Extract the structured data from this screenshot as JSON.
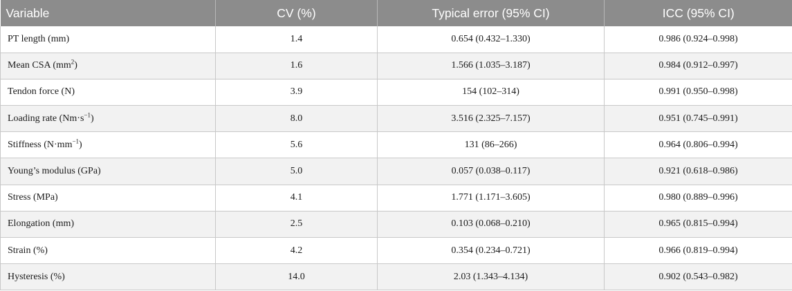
{
  "table": {
    "headers": [
      "Variable",
      "CV (%)",
      "Typical error (95% CI)",
      "ICC (95% CI)"
    ],
    "rows": [
      {
        "variable": "PT length (mm)",
        "sup": "",
        "variable_end": "",
        "cv": "1.4",
        "te": "0.654 (0.432–1.330)",
        "icc": "0.986 (0.924–0.998)"
      },
      {
        "variable": "Mean CSA (mm",
        "sup": "2",
        "variable_end": ")",
        "cv": "1.6",
        "te": "1.566 (1.035–3.187)",
        "icc": "0.984 (0.912–0.997)"
      },
      {
        "variable": "Tendon force (N)",
        "sup": "",
        "variable_end": "",
        "cv": "3.9",
        "te": "154 (102–314)",
        "icc": "0.991 (0.950–0.998)"
      },
      {
        "variable": "Loading rate (Nm·s",
        "sup": "−1",
        "variable_end": ")",
        "cv": "8.0",
        "te": "3.516 (2.325–7.157)",
        "icc": "0.951 (0.745–0.991)"
      },
      {
        "variable": "Stiffness (N·mm",
        "sup": "−1",
        "variable_end": ")",
        "cv": "5.6",
        "te": "131 (86–266)",
        "icc": "0.964 (0.806–0.994)"
      },
      {
        "variable": "Young’s modulus (GPa)",
        "sup": "",
        "variable_end": "",
        "cv": "5.0",
        "te": "0.057 (0.038–0.117)",
        "icc": "0.921 (0.618–0.986)"
      },
      {
        "variable": "Stress (MPa)",
        "sup": "",
        "variable_end": "",
        "cv": "4.1",
        "te": "1.771 (1.171–3.605)",
        "icc": "0.980 (0.889–0.996)"
      },
      {
        "variable": "Elongation (mm)",
        "sup": "",
        "variable_end": "",
        "cv": "2.5",
        "te": "0.103 (0.068–0.210)",
        "icc": "0.965 (0.815–0.994)"
      },
      {
        "variable": "Strain (%)",
        "sup": "",
        "variable_end": "",
        "cv": "4.2",
        "te": "0.354 (0.234–0.721)",
        "icc": "0.966 (0.819–0.994)"
      },
      {
        "variable": "Hysteresis (%)",
        "sup": "",
        "variable_end": "",
        "cv": "14.0",
        "te": "2.03 (1.343–4.134)",
        "icc": "0.902 (0.543–0.982)"
      }
    ]
  }
}
